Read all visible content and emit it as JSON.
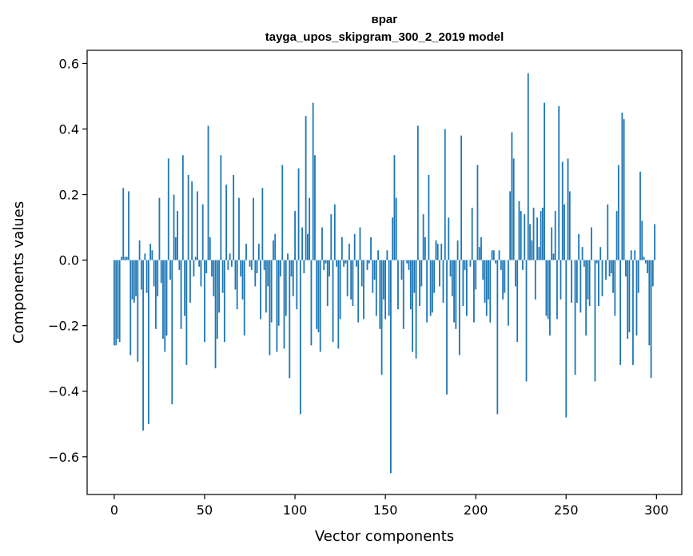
{
  "chart_data": {
    "type": "bar",
    "title": "враг",
    "subtitle": "tayga_upos_skipgram_300_2_2019 model",
    "xlabel": "Vector components",
    "ylabel": "Components values",
    "xlim": [
      -15,
      314
    ],
    "ylim": [
      -0.715,
      0.64
    ],
    "xticks": [
      0,
      50,
      100,
      150,
      200,
      250,
      300
    ],
    "xtick_labels": [
      "0",
      "50",
      "100",
      "150",
      "200",
      "250",
      "300"
    ],
    "yticks": [
      -0.6,
      -0.4,
      -0.2,
      0.0,
      0.2,
      0.4,
      0.6
    ],
    "ytick_labels": [
      "−0.6",
      "−0.4",
      "−0.2",
      "0.0",
      "0.2",
      "0.4",
      "0.6"
    ],
    "grid": false,
    "color": "#1f77b4",
    "x": [
      0,
      1,
      2,
      3,
      4,
      5,
      6,
      7,
      8,
      9,
      10,
      11,
      12,
      13,
      14,
      15,
      16,
      17,
      18,
      19,
      20,
      21,
      22,
      23,
      24,
      25,
      26,
      27,
      28,
      29,
      30,
      31,
      32,
      33,
      34,
      35,
      36,
      37,
      38,
      39,
      40,
      41,
      42,
      43,
      44,
      45,
      46,
      47,
      48,
      49,
      50,
      51,
      52,
      53,
      54,
      55,
      56,
      57,
      58,
      59,
      60,
      61,
      62,
      63,
      64,
      65,
      66,
      67,
      68,
      69,
      70,
      71,
      72,
      73,
      74,
      75,
      76,
      77,
      78,
      79,
      80,
      81,
      82,
      83,
      84,
      85,
      86,
      87,
      88,
      89,
      90,
      91,
      92,
      93,
      94,
      95,
      96,
      97,
      98,
      99,
      100,
      101,
      102,
      103,
      104,
      105,
      106,
      107,
      108,
      109,
      110,
      111,
      112,
      113,
      114,
      115,
      116,
      117,
      118,
      119,
      120,
      121,
      122,
      123,
      124,
      125,
      126,
      127,
      128,
      129,
      130,
      131,
      132,
      133,
      134,
      135,
      136,
      137,
      138,
      139,
      140,
      141,
      142,
      143,
      144,
      145,
      146,
      147,
      148,
      149,
      150,
      151,
      152,
      153,
      154,
      155,
      156,
      157,
      158,
      159,
      160,
      161,
      162,
      163,
      164,
      165,
      166,
      167,
      168,
      169,
      170,
      171,
      172,
      173,
      174,
      175,
      176,
      177,
      178,
      179,
      180,
      181,
      182,
      183,
      184,
      185,
      186,
      187,
      188,
      189,
      190,
      191,
      192,
      193,
      194,
      195,
      196,
      197,
      198,
      199,
      200,
      201,
      202,
      203,
      204,
      205,
      206,
      207,
      208,
      209,
      210,
      211,
      212,
      213,
      214,
      215,
      216,
      217,
      218,
      219,
      220,
      221,
      222,
      223,
      224,
      225,
      226,
      227,
      228,
      229,
      230,
      231,
      232,
      233,
      234,
      235,
      236,
      237,
      238,
      239,
      240,
      241,
      242,
      243,
      244,
      245,
      246,
      247,
      248,
      249,
      250,
      251,
      252,
      253,
      254,
      255,
      256,
      257,
      258,
      259,
      260,
      261,
      262,
      263,
      264,
      265,
      266,
      267,
      268,
      269,
      270,
      271,
      272,
      273,
      274,
      275,
      276,
      277,
      278,
      279,
      280,
      281,
      282,
      283,
      284,
      285,
      286,
      287,
      288,
      289,
      290,
      291,
      292,
      293,
      294,
      295,
      296,
      297,
      298,
      299
    ],
    "values": [
      -0.26,
      -0.26,
      -0.24,
      -0.25,
      0.01,
      0.22,
      0.01,
      0.01,
      0.21,
      -0.29,
      -0.12,
      -0.13,
      -0.11,
      -0.31,
      0.06,
      -0.09,
      -0.52,
      0.02,
      -0.1,
      -0.5,
      0.05,
      0.03,
      -0.08,
      -0.21,
      -0.11,
      0.19,
      -0.07,
      -0.24,
      -0.28,
      -0.23,
      0.31,
      -0.06,
      -0.44,
      0.2,
      0.07,
      0.15,
      -0.03,
      -0.21,
      0.32,
      -0.17,
      -0.32,
      0.26,
      -0.13,
      0.24,
      -0.05,
      0.01,
      0.21,
      -0.02,
      -0.08,
      0.17,
      -0.25,
      -0.04,
      0.41,
      0.07,
      -0.05,
      -0.11,
      -0.33,
      -0.24,
      -0.16,
      0.32,
      -0.1,
      -0.25,
      0.23,
      -0.03,
      0.02,
      -0.02,
      0.26,
      -0.09,
      -0.15,
      0.19,
      -0.05,
      -0.12,
      -0.23,
      0.05,
      0.0,
      -0.02,
      -0.03,
      0.19,
      -0.08,
      -0.04,
      0.05,
      -0.18,
      0.22,
      -0.03,
      -0.16,
      -0.08,
      -0.29,
      -0.19,
      0.06,
      0.08,
      -0.28,
      -0.2,
      -0.05,
      0.29,
      -0.27,
      -0.17,
      0.02,
      -0.36,
      -0.05,
      -0.11,
      0.15,
      -0.15,
      0.28,
      -0.47,
      0.1,
      -0.04,
      0.44,
      0.08,
      0.19,
      -0.26,
      0.48,
      0.32,
      -0.21,
      -0.22,
      -0.28,
      0.1,
      -0.03,
      -0.01,
      -0.14,
      -0.05,
      0.14,
      -0.25,
      0.17,
      -0.02,
      -0.27,
      -0.18,
      0.07,
      -0.02,
      -0.01,
      -0.11,
      0.05,
      -0.12,
      -0.14,
      0.08,
      -0.02,
      -0.19,
      0.1,
      -0.08,
      -0.18,
      0.0,
      -0.03,
      -0.01,
      0.07,
      -0.1,
      -0.06,
      -0.17,
      0.03,
      -0.21,
      -0.35,
      -0.12,
      -0.18,
      0.03,
      -0.17,
      -0.65,
      0.13,
      0.32,
      0.19,
      -0.15,
      0.0,
      -0.06,
      -0.21,
      0.0,
      -0.01,
      -0.03,
      -0.15,
      -0.28,
      -0.1,
      -0.3,
      0.41,
      -0.14,
      -0.08,
      0.14,
      0.07,
      -0.19,
      0.26,
      -0.17,
      -0.16,
      -0.1,
      0.06,
      0.05,
      -0.08,
      0.05,
      -0.13,
      0.4,
      -0.41,
      0.13,
      -0.05,
      -0.11,
      -0.19,
      -0.21,
      0.06,
      -0.29,
      0.38,
      -0.14,
      -0.03,
      -0.17,
      0.0,
      -0.02,
      0.16,
      -0.19,
      -0.09,
      0.29,
      0.04,
      0.07,
      -0.06,
      -0.13,
      -0.17,
      -0.12,
      -0.19,
      0.03,
      0.03,
      -0.01,
      -0.47,
      0.03,
      -0.03,
      -0.12,
      -0.1,
      0.0,
      -0.2,
      0.21,
      0.39,
      0.31,
      -0.08,
      -0.25,
      0.18,
      0.15,
      -0.03,
      0.14,
      -0.37,
      0.57,
      0.11,
      0.06,
      0.16,
      -0.12,
      0.13,
      0.04,
      0.15,
      0.16,
      0.48,
      -0.17,
      -0.18,
      -0.23,
      0.1,
      0.02,
      0.15,
      -0.18,
      0.47,
      -0.12,
      0.3,
      0.17,
      -0.48,
      0.31,
      0.21,
      -0.13,
      0.0,
      -0.35,
      -0.13,
      0.08,
      -0.16,
      0.04,
      -0.02,
      -0.23,
      -0.12,
      -0.14,
      0.1,
      0.0,
      -0.37,
      -0.01,
      -0.14,
      0.04,
      -0.11,
      0.0,
      -0.06,
      0.17,
      -0.05,
      -0.04,
      -0.1,
      -0.17,
      0.15,
      0.29,
      -0.32,
      0.45,
      0.43,
      -0.05,
      -0.24,
      -0.22,
      0.03,
      -0.32,
      0.03,
      -0.23,
      -0.1,
      0.27,
      0.12,
      0.01,
      -0.01,
      -0.04,
      -0.26,
      -0.36,
      -0.08,
      0.11
    ]
  }
}
